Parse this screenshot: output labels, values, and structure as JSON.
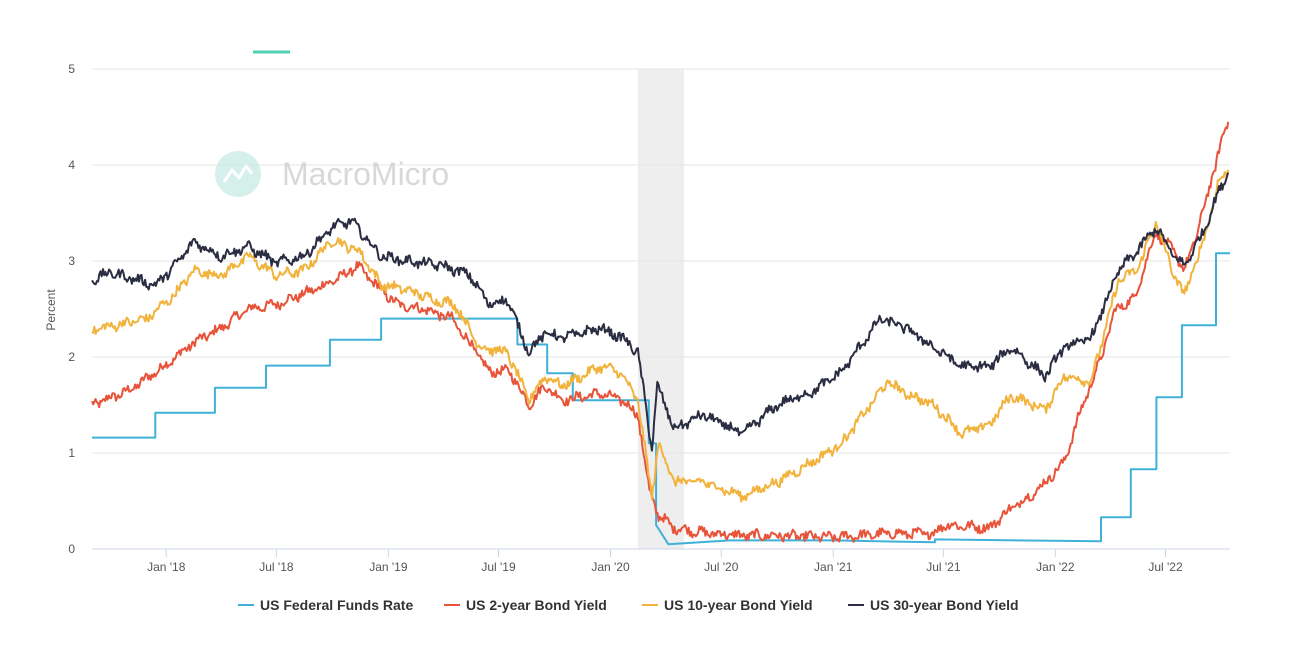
{
  "chart_data": {
    "type": "line",
    "title": "",
    "xlabel": "",
    "ylabel": "Percent",
    "ylim": [
      0,
      5
    ],
    "yticks": [
      0,
      1,
      2,
      3,
      4,
      5
    ],
    "xlim": [
      "2017-09-01",
      "2022-10-15"
    ],
    "xticks": [
      {
        "date": "2018-01-01",
        "label": "Jan '18"
      },
      {
        "date": "2018-07-01",
        "label": "Jul '18"
      },
      {
        "date": "2019-01-01",
        "label": "Jan '19"
      },
      {
        "date": "2019-07-01",
        "label": "Jul '19"
      },
      {
        "date": "2020-01-01",
        "label": "Jan '20"
      },
      {
        "date": "2020-07-01",
        "label": "Jul '20"
      },
      {
        "date": "2021-01-01",
        "label": "Jan '21"
      },
      {
        "date": "2021-07-01",
        "label": "Jul '21"
      },
      {
        "date": "2022-01-01",
        "label": "Jan '22"
      },
      {
        "date": "2022-07-01",
        "label": "Jul '22"
      }
    ],
    "recession_band": {
      "start": "2020-02-15",
      "end": "2020-05-01"
    },
    "watermark": "MacroMicro",
    "series": [
      {
        "name": "US Federal Funds Rate",
        "color": "#3fb1d8",
        "step": true,
        "points": [
          [
            "2017-09-01",
            1.16
          ],
          [
            "2017-12-14",
            1.16
          ],
          [
            "2017-12-14",
            1.42
          ],
          [
            "2018-03-22",
            1.42
          ],
          [
            "2018-03-22",
            1.68
          ],
          [
            "2018-06-14",
            1.68
          ],
          [
            "2018-06-14",
            1.91
          ],
          [
            "2018-09-27",
            1.91
          ],
          [
            "2018-09-27",
            2.18
          ],
          [
            "2018-12-20",
            2.18
          ],
          [
            "2018-12-20",
            2.4
          ],
          [
            "2019-08-01",
            2.4
          ],
          [
            "2019-08-01",
            2.13
          ],
          [
            "2019-09-19",
            2.13
          ],
          [
            "2019-09-19",
            1.83
          ],
          [
            "2019-10-31",
            1.83
          ],
          [
            "2019-10-31",
            1.55
          ],
          [
            "2020-03-04",
            1.55
          ],
          [
            "2020-03-04",
            1.1
          ],
          [
            "2020-03-16",
            1.1
          ],
          [
            "2020-03-16",
            0.25
          ],
          [
            "2020-04-05",
            0.05
          ],
          [
            "2020-07-15",
            0.09
          ],
          [
            "2021-01-01",
            0.09
          ],
          [
            "2021-06-17",
            0.07
          ],
          [
            "2021-06-17",
            0.1
          ],
          [
            "2022-03-17",
            0.08
          ],
          [
            "2022-03-17",
            0.33
          ],
          [
            "2022-05-05",
            0.33
          ],
          [
            "2022-05-05",
            0.83
          ],
          [
            "2022-06-16",
            0.83
          ],
          [
            "2022-06-16",
            1.58
          ],
          [
            "2022-07-28",
            1.58
          ],
          [
            "2022-07-28",
            2.33
          ],
          [
            "2022-09-22",
            2.33
          ],
          [
            "2022-09-22",
            3.08
          ],
          [
            "2022-10-15",
            3.08
          ]
        ]
      },
      {
        "name": "US 2-year Bond Yield",
        "color": "#e8543a",
        "step": false,
        "points": [
          [
            "2017-09-01",
            1.5
          ],
          [
            "2017-11-01",
            1.65
          ],
          [
            "2018-01-01",
            1.92
          ],
          [
            "2018-02-15",
            2.15
          ],
          [
            "2018-04-01",
            2.3
          ],
          [
            "2018-05-15",
            2.5
          ],
          [
            "2018-07-01",
            2.55
          ],
          [
            "2018-09-01",
            2.7
          ],
          [
            "2018-10-20",
            2.85
          ],
          [
            "2018-11-10",
            2.95
          ],
          [
            "2018-12-20",
            2.7
          ],
          [
            "2019-01-15",
            2.55
          ],
          [
            "2019-03-01",
            2.5
          ],
          [
            "2019-04-15",
            2.4
          ],
          [
            "2019-05-20",
            2.1
          ],
          [
            "2019-06-15",
            1.85
          ],
          [
            "2019-07-20",
            1.85
          ],
          [
            "2019-08-20",
            1.5
          ],
          [
            "2019-09-15",
            1.7
          ],
          [
            "2019-10-15",
            1.55
          ],
          [
            "2019-12-15",
            1.62
          ],
          [
            "2020-01-20",
            1.55
          ],
          [
            "2020-02-15",
            1.4
          ],
          [
            "2020-03-05",
            0.6
          ],
          [
            "2020-03-20",
            0.35
          ],
          [
            "2020-04-15",
            0.22
          ],
          [
            "2020-06-01",
            0.17
          ],
          [
            "2020-08-01",
            0.14
          ],
          [
            "2020-10-01",
            0.14
          ],
          [
            "2021-01-01",
            0.12
          ],
          [
            "2021-04-01",
            0.16
          ],
          [
            "2021-06-15",
            0.16
          ],
          [
            "2021-07-01",
            0.25
          ],
          [
            "2021-09-15",
            0.22
          ],
          [
            "2021-10-15",
            0.4
          ],
          [
            "2021-12-01",
            0.6
          ],
          [
            "2022-01-15",
            0.9
          ],
          [
            "2022-02-15",
            1.5
          ],
          [
            "2022-03-15",
            1.95
          ],
          [
            "2022-04-10",
            2.5
          ],
          [
            "2022-05-10",
            2.6
          ],
          [
            "2022-06-15",
            3.3
          ],
          [
            "2022-07-15",
            3.1
          ],
          [
            "2022-08-01",
            2.9
          ],
          [
            "2022-08-20",
            3.25
          ],
          [
            "2022-09-15",
            3.85
          ],
          [
            "2022-10-01",
            4.25
          ],
          [
            "2022-10-12",
            4.45
          ]
        ]
      },
      {
        "name": "US 10-year Bond Yield",
        "color": "#f2b33d",
        "step": false,
        "points": [
          [
            "2017-09-01",
            2.28
          ],
          [
            "2017-12-01",
            2.4
          ],
          [
            "2018-01-15",
            2.65
          ],
          [
            "2018-02-15",
            2.9
          ],
          [
            "2018-04-01",
            2.85
          ],
          [
            "2018-05-15",
            3.05
          ],
          [
            "2018-07-01",
            2.85
          ],
          [
            "2018-08-15",
            2.9
          ],
          [
            "2018-10-01",
            3.22
          ],
          [
            "2018-11-15",
            3.1
          ],
          [
            "2018-12-20",
            2.75
          ],
          [
            "2019-02-01",
            2.7
          ],
          [
            "2019-03-15",
            2.6
          ],
          [
            "2019-04-20",
            2.55
          ],
          [
            "2019-06-01",
            2.1
          ],
          [
            "2019-07-15",
            2.05
          ],
          [
            "2019-08-20",
            1.55
          ],
          [
            "2019-09-15",
            1.8
          ],
          [
            "2019-10-15",
            1.7
          ],
          [
            "2019-12-15",
            1.9
          ],
          [
            "2020-01-15",
            1.85
          ],
          [
            "2020-02-15",
            1.55
          ],
          [
            "2020-03-09",
            0.55
          ],
          [
            "2020-03-20",
            1.1
          ],
          [
            "2020-04-15",
            0.7
          ],
          [
            "2020-06-01",
            0.7
          ],
          [
            "2020-08-05",
            0.55
          ],
          [
            "2020-10-01",
            0.7
          ],
          [
            "2020-12-01",
            0.92
          ],
          [
            "2021-01-15",
            1.1
          ],
          [
            "2021-03-31",
            1.74
          ],
          [
            "2021-05-01",
            1.62
          ],
          [
            "2021-06-15",
            1.5
          ],
          [
            "2021-08-01",
            1.2
          ],
          [
            "2021-09-15",
            1.3
          ],
          [
            "2021-10-20",
            1.6
          ],
          [
            "2021-12-15",
            1.45
          ],
          [
            "2022-01-15",
            1.8
          ],
          [
            "2022-03-01",
            1.75
          ],
          [
            "2022-04-15",
            2.8
          ],
          [
            "2022-05-15",
            2.9
          ],
          [
            "2022-06-15",
            3.4
          ],
          [
            "2022-07-15",
            2.85
          ],
          [
            "2022-08-01",
            2.65
          ],
          [
            "2022-09-01",
            3.2
          ],
          [
            "2022-09-25",
            3.8
          ],
          [
            "2022-10-12",
            3.95
          ]
        ]
      },
      {
        "name": "US 30-year Bond Yield",
        "color": "#2b2d42",
        "step": false,
        "points": [
          [
            "2017-09-01",
            2.8
          ],
          [
            "2017-10-01",
            2.88
          ],
          [
            "2017-12-15",
            2.75
          ],
          [
            "2018-01-15",
            2.95
          ],
          [
            "2018-02-15",
            3.2
          ],
          [
            "2018-04-01",
            3.05
          ],
          [
            "2018-05-15",
            3.15
          ],
          [
            "2018-07-01",
            2.98
          ],
          [
            "2018-08-15",
            3.05
          ],
          [
            "2018-10-01",
            3.35
          ],
          [
            "2018-11-01",
            3.42
          ],
          [
            "2018-12-20",
            3.05
          ],
          [
            "2019-02-01",
            3.0
          ],
          [
            "2019-04-01",
            2.95
          ],
          [
            "2019-05-15",
            2.85
          ],
          [
            "2019-06-15",
            2.55
          ],
          [
            "2019-07-15",
            2.6
          ],
          [
            "2019-08-20",
            2.05
          ],
          [
            "2019-09-15",
            2.25
          ],
          [
            "2019-10-15",
            2.2
          ],
          [
            "2019-12-15",
            2.3
          ],
          [
            "2020-01-20",
            2.2
          ],
          [
            "2020-02-15",
            2.05
          ],
          [
            "2020-03-09",
            1.05
          ],
          [
            "2020-03-18",
            1.7
          ],
          [
            "2020-04-15",
            1.25
          ],
          [
            "2020-06-01",
            1.4
          ],
          [
            "2020-08-05",
            1.2
          ],
          [
            "2020-10-01",
            1.5
          ],
          [
            "2020-12-01",
            1.65
          ],
          [
            "2021-01-15",
            1.85
          ],
          [
            "2021-03-20",
            2.4
          ],
          [
            "2021-05-01",
            2.3
          ],
          [
            "2021-06-15",
            2.1
          ],
          [
            "2021-08-01",
            1.9
          ],
          [
            "2021-09-15",
            1.9
          ],
          [
            "2021-10-20",
            2.1
          ],
          [
            "2021-12-15",
            1.8
          ],
          [
            "2022-01-15",
            2.1
          ],
          [
            "2022-03-01",
            2.2
          ],
          [
            "2022-04-15",
            2.9
          ],
          [
            "2022-05-15",
            3.1
          ],
          [
            "2022-06-15",
            3.35
          ],
          [
            "2022-07-15",
            3.05
          ],
          [
            "2022-08-01",
            2.95
          ],
          [
            "2022-09-01",
            3.3
          ],
          [
            "2022-09-25",
            3.7
          ],
          [
            "2022-10-12",
            3.92
          ]
        ]
      }
    ]
  }
}
